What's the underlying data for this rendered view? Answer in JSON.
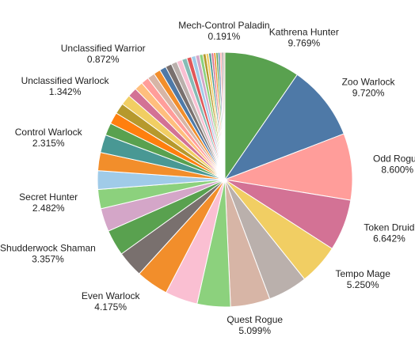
{
  "chart_data": {
    "type": "pie",
    "title": "",
    "start_angle": "top",
    "direction": "clockwise",
    "slices": [
      {
        "label": "Kathrena Hunter",
        "pct_text": "9.769%",
        "value": 9.769,
        "color": "#59a14f",
        "show_label": true
      },
      {
        "label": "Zoo Warlock",
        "pct_text": "9.720%",
        "value": 9.72,
        "color": "#4e79a7",
        "show_label": true
      },
      {
        "label": "Odd Rogue",
        "pct_text": "8.600%",
        "value": 8.6,
        "color": "#ff9d9a",
        "show_label": true
      },
      {
        "label": "Token Druid",
        "pct_text": "6.642%",
        "value": 6.642,
        "color": "#d37295",
        "show_label": true
      },
      {
        "label": "Tempo Mage",
        "pct_text": "5.250%",
        "value": 5.25,
        "color": "#f1ce63",
        "show_label": true
      },
      {
        "label": "",
        "pct_text": "",
        "value": 5.1,
        "color": "#bab0ac",
        "show_label": false
      },
      {
        "label": "Quest Rogue",
        "pct_text": "5.099%",
        "value": 5.099,
        "color": "#d7b5a6",
        "show_label": true
      },
      {
        "label": "",
        "pct_text": "",
        "value": 4.3,
        "color": "#8cd17d",
        "show_label": false
      },
      {
        "label": "",
        "pct_text": "",
        "value": 4.2,
        "color": "#fabfd2",
        "show_label": false
      },
      {
        "label": "Even Warlock",
        "pct_text": "4.175%",
        "value": 4.175,
        "color": "#f28e2b",
        "show_label": true
      },
      {
        "label": "",
        "pct_text": "",
        "value": 3.4,
        "color": "#79706e",
        "show_label": false
      },
      {
        "label": "Shudderwock Shaman",
        "pct_text": "3.357%",
        "value": 3.357,
        "color": "#59a14f",
        "show_label": true
      },
      {
        "label": "",
        "pct_text": "",
        "value": 3.0,
        "color": "#d4a6c8",
        "show_label": false
      },
      {
        "label": "Secret Hunter",
        "pct_text": "2.482%",
        "value": 2.482,
        "color": "#8cd17d",
        "show_label": true
      },
      {
        "label": "",
        "pct_text": "",
        "value": 2.4,
        "color": "#a0cbe8",
        "show_label": false
      },
      {
        "label": "",
        "pct_text": "",
        "value": 2.35,
        "color": "#f28e2b",
        "show_label": false
      },
      {
        "label": "Control Warlock",
        "pct_text": "2.315%",
        "value": 2.315,
        "color": "#499894",
        "show_label": true
      },
      {
        "label": "",
        "pct_text": "",
        "value": 1.6,
        "color": "#59a14f",
        "show_label": false
      },
      {
        "label": "",
        "pct_text": "",
        "value": 1.5,
        "color": "#ff7f0e",
        "show_label": false
      },
      {
        "label": "",
        "pct_text": "",
        "value": 1.4,
        "color": "#b6992d",
        "show_label": false
      },
      {
        "label": "Unclassified Warlock",
        "pct_text": "1.342%",
        "value": 1.342,
        "color": "#f1ce63",
        "show_label": true
      },
      {
        "label": "",
        "pct_text": "",
        "value": 1.2,
        "color": "#d37295",
        "show_label": false
      },
      {
        "label": "",
        "pct_text": "",
        "value": 1.1,
        "color": "#ffbe7d",
        "show_label": false
      },
      {
        "label": "",
        "pct_text": "",
        "value": 1.0,
        "color": "#ff9d9a",
        "show_label": false
      },
      {
        "label": "",
        "pct_text": "",
        "value": 0.95,
        "color": "#d7b5a6",
        "show_label": false
      },
      {
        "label": "Unclassified Warrior",
        "pct_text": "0.872%",
        "value": 0.872,
        "color": "#f28e2b",
        "show_label": true
      },
      {
        "label": "",
        "pct_text": "",
        "value": 0.85,
        "color": "#4e79a7",
        "show_label": false
      },
      {
        "label": "",
        "pct_text": "",
        "value": 0.8,
        "color": "#79706e",
        "show_label": false
      },
      {
        "label": "",
        "pct_text": "",
        "value": 0.75,
        "color": "#bab0ac",
        "show_label": false
      },
      {
        "label": "",
        "pct_text": "",
        "value": 0.7,
        "color": "#fabfd2",
        "show_label": false
      },
      {
        "label": "",
        "pct_text": "",
        "value": 0.65,
        "color": "#86bcb6",
        "show_label": false
      },
      {
        "label": "",
        "pct_text": "",
        "value": 0.6,
        "color": "#e15759",
        "show_label": false
      },
      {
        "label": "",
        "pct_text": "",
        "value": 0.55,
        "color": "#a0cbe8",
        "show_label": false
      },
      {
        "label": "",
        "pct_text": "",
        "value": 0.5,
        "color": "#d4a6c8",
        "show_label": false
      },
      {
        "label": "",
        "pct_text": "",
        "value": 0.45,
        "color": "#8cd17d",
        "show_label": false
      },
      {
        "label": "",
        "pct_text": "",
        "value": 0.4,
        "color": "#b6992d",
        "show_label": false
      },
      {
        "label": "",
        "pct_text": "",
        "value": 0.35,
        "color": "#f1ce63",
        "show_label": false
      },
      {
        "label": "",
        "pct_text": "",
        "value": 0.33,
        "color": "#499894",
        "show_label": false
      },
      {
        "label": "",
        "pct_text": "",
        "value": 0.31,
        "color": "#d37295",
        "show_label": false
      },
      {
        "label": "",
        "pct_text": "",
        "value": 0.29,
        "color": "#f28e2b",
        "show_label": false
      },
      {
        "label": "",
        "pct_text": "",
        "value": 0.27,
        "color": "#59a14f",
        "show_label": false
      },
      {
        "label": "",
        "pct_text": "",
        "value": 0.25,
        "color": "#4e79a7",
        "show_label": false
      },
      {
        "label": "",
        "pct_text": "",
        "value": 0.23,
        "color": "#ff9d9a",
        "show_label": false
      },
      {
        "label": "",
        "pct_text": "",
        "value": 0.21,
        "color": "#79706e",
        "show_label": false
      },
      {
        "label": "Mech-Control Paladin",
        "pct_text": "0.191%",
        "value": 0.191,
        "color": "#d7b5a6",
        "show_label": true
      }
    ]
  }
}
